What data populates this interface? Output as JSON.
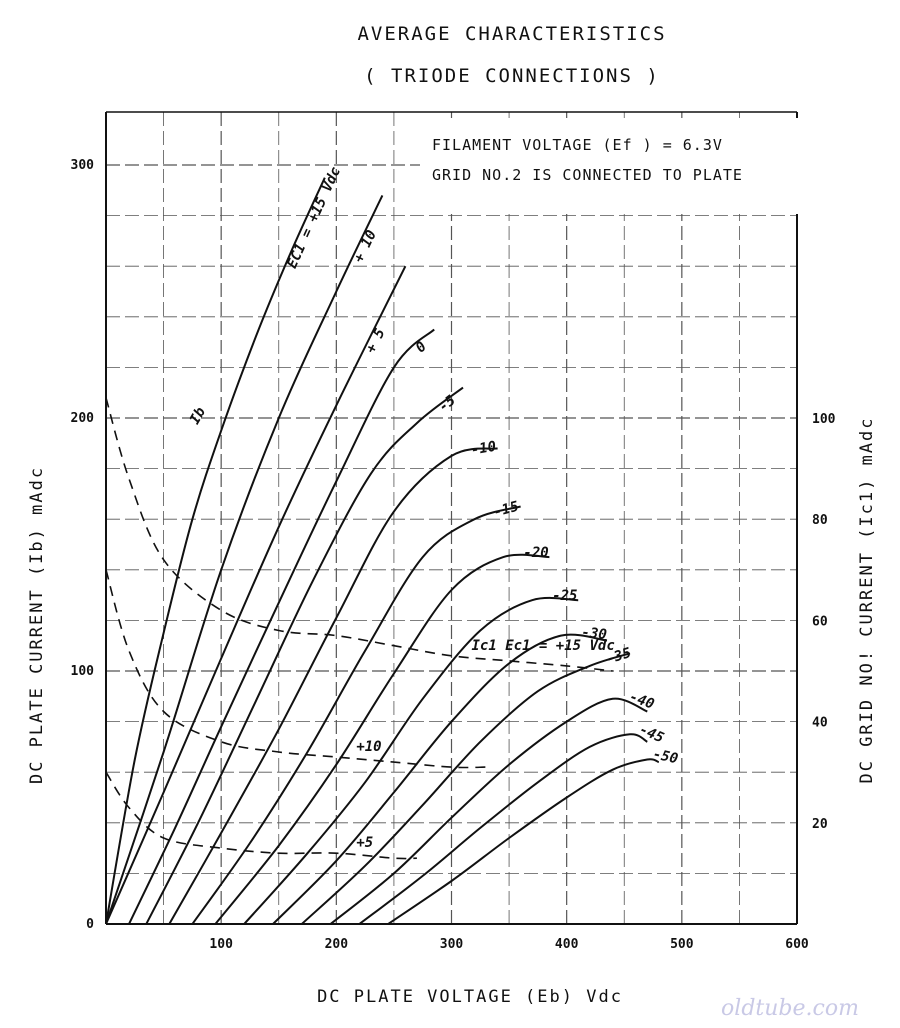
{
  "titles": {
    "line1": "AVERAGE CHARACTERISTICS",
    "line2": "( TRIODE CONNECTIONS )"
  },
  "notes": {
    "line1": "FILAMENT VOLTAGE (Ef ) = 6.3V",
    "line2": "GRID NO.2 IS CONNECTED TO PLATE"
  },
  "watermark": "oldtube.com",
  "chart_data": {
    "type": "line",
    "xlabel": "DC PLATE VOLTAGE (Eb) Vdc",
    "ylabel": "DC PLATE CURRENT (Ib) mAdc",
    "y2label": "DC GRID NO! CURRENT (Ic1) mAdc",
    "xlim": [
      0,
      600
    ],
    "ylim": [
      0,
      300
    ],
    "y2lim": [
      0,
      150
    ],
    "grid": true,
    "x_ticks": [
      "100",
      "200",
      "300",
      "400",
      "500",
      "600"
    ],
    "y_ticks": [
      "0",
      "100",
      "200",
      "300"
    ],
    "y2_ticks": [
      "20",
      "40",
      "60",
      "80",
      "100"
    ],
    "plate_current_series": [
      {
        "name": "Ec1 = +15 Vdc",
        "label": "EC1 = +15 Vdc",
        "x": [
          0,
          25,
          50,
          75,
          100,
          130,
          160,
          190
        ],
        "y": [
          0,
          65,
          115,
          160,
          195,
          232,
          265,
          295
        ]
      },
      {
        "name": "+10",
        "label": "+ 10",
        "x": [
          0,
          50,
          100,
          150,
          200,
          240
        ],
        "y": [
          0,
          68,
          140,
          200,
          250,
          288
        ]
      },
      {
        "name": "+5",
        "label": "+ 5",
        "x": [
          0,
          50,
          100,
          150,
          200,
          260
        ],
        "y": [
          0,
          52,
          105,
          157,
          205,
          260
        ]
      },
      {
        "name": "0",
        "label": "0",
        "x": [
          20,
          60,
          100,
          150,
          200,
          250,
          285
        ],
        "y": [
          0,
          38,
          78,
          127,
          175,
          220,
          235
        ]
      },
      {
        "name": "-5",
        "label": "-5",
        "x": [
          35,
          80,
          130,
          180,
          230,
          270,
          310
        ],
        "y": [
          0,
          40,
          88,
          136,
          178,
          198,
          212
        ]
      },
      {
        "name": "-10",
        "label": "-10",
        "x": [
          55,
          100,
          150,
          200,
          250,
          300,
          340
        ],
        "y": [
          0,
          36,
          77,
          121,
          163,
          185,
          188
        ]
      },
      {
        "name": "-15",
        "label": "-15",
        "x": [
          75,
          125,
          175,
          225,
          275,
          320,
          360
        ],
        "y": [
          0,
          32,
          68,
          108,
          145,
          160,
          165
        ]
      },
      {
        "name": "-20",
        "label": "-20",
        "x": [
          95,
          150,
          200,
          250,
          300,
          345,
          385
        ],
        "y": [
          0,
          31,
          63,
          99,
          132,
          145,
          145
        ]
      },
      {
        "name": "-25",
        "label": "-25",
        "x": [
          120,
          175,
          225,
          275,
          325,
          370,
          410
        ],
        "y": [
          0,
          28,
          56,
          89,
          116,
          128,
          128
        ]
      },
      {
        "name": "-30",
        "label": "-30",
        "x": [
          145,
          200,
          250,
          300,
          350,
          395,
          435
        ],
        "y": [
          0,
          25,
          52,
          80,
          103,
          114,
          112
        ]
      },
      {
        "name": "-35",
        "label": "-35",
        "x": [
          170,
          225,
          275,
          325,
          375,
          420,
          455
        ],
        "y": [
          0,
          23,
          47,
          72,
          92,
          102,
          107
        ]
      },
      {
        "name": "-40",
        "label": "-40",
        "x": [
          195,
          250,
          300,
          350,
          400,
          440,
          470
        ],
        "y": [
          0,
          20,
          42,
          63,
          80,
          89,
          84
        ]
      },
      {
        "name": "-45",
        "label": "-45",
        "x": [
          220,
          275,
          325,
          375,
          420,
          455,
          470
        ],
        "y": [
          0,
          19,
          38,
          56,
          70,
          75,
          72
        ]
      },
      {
        "name": "-50",
        "label": "-50",
        "x": [
          245,
          300,
          350,
          400,
          440,
          470,
          480
        ],
        "y": [
          0,
          17,
          34,
          50,
          61,
          65,
          64
        ]
      }
    ],
    "grid_current_series": [
      {
        "name": "Ic1 at Ec1 = +15 Vdc",
        "label": "Ic1   Ec1 = +15 Vdc",
        "x": [
          0,
          20,
          50,
          100,
          150,
          200,
          250,
          300,
          350,
          400,
          440
        ],
        "y": [
          104,
          88,
          72,
          62,
          58,
          57,
          55,
          53,
          52,
          51,
          50
        ]
      },
      {
        "name": "Ic1 at +10",
        "label": "+10",
        "x": [
          0,
          20,
          50,
          100,
          150,
          200,
          250,
          300,
          330
        ],
        "y": [
          70,
          54,
          42,
          36,
          34,
          33,
          32,
          31,
          31
        ]
      },
      {
        "name": "Ic1 at +5",
        "label": "+5",
        "x": [
          0,
          20,
          50,
          100,
          150,
          200,
          250,
          270
        ],
        "y": [
          30,
          23,
          17,
          15,
          14,
          14,
          13,
          13
        ]
      }
    ],
    "curve_annotations": {
      "ib": "Ib",
      "ic1": "IC1"
    }
  }
}
